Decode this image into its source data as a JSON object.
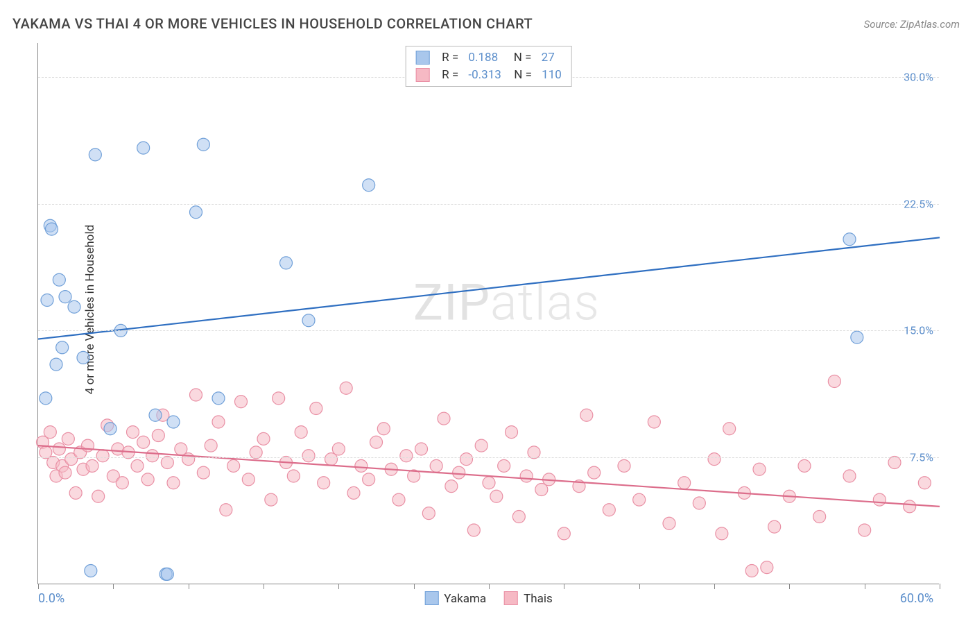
{
  "title": "YAKAMA VS THAI 4 OR MORE VEHICLES IN HOUSEHOLD CORRELATION CHART",
  "source_prefix": "Source: ",
  "source_name": "ZipAtlas.com",
  "ylabel": "4 or more Vehicles in Household",
  "watermark_a": "ZIP",
  "watermark_b": "atlas",
  "chart": {
    "type": "scatter",
    "background_color": "#ffffff",
    "grid_color": "#dddddd",
    "axis_color": "#888888",
    "xlim": [
      0,
      60
    ],
    "ylim": [
      0,
      32
    ],
    "ygrid": [
      7.5,
      15.0,
      22.5,
      30.0
    ],
    "ytick_labels": [
      "7.5%",
      "15.0%",
      "22.5%",
      "30.0%"
    ],
    "xorigin_label": "0.0%",
    "xmax_label": "60.0%",
    "xticks": [
      0,
      5,
      10,
      15,
      20,
      25,
      30,
      35,
      40,
      45,
      50,
      55,
      60
    ],
    "label_color": "#5b8ecb",
    "marker_radius": 9,
    "marker_opacity": 0.55,
    "line_width": 2.2,
    "series": [
      {
        "key": "yakama",
        "label": "Yakama",
        "color_fill": "#a9c7ec",
        "color_stroke": "#6f9fd8",
        "line_color": "#2f6fc1",
        "R": "0.188",
        "N": "27",
        "trend": {
          "x1": 0,
          "y1": 14.5,
          "x2": 60,
          "y2": 20.5
        },
        "points": [
          [
            0.5,
            11.0
          ],
          [
            0.6,
            16.8
          ],
          [
            0.8,
            21.2
          ],
          [
            0.9,
            21.0
          ],
          [
            1.2,
            13.0
          ],
          [
            1.4,
            18.0
          ],
          [
            1.6,
            14.0
          ],
          [
            1.8,
            17.0
          ],
          [
            2.4,
            16.4
          ],
          [
            3.0,
            13.4
          ],
          [
            3.8,
            25.4
          ],
          [
            4.8,
            9.2
          ],
          [
            5.5,
            15.0
          ],
          [
            7.0,
            25.8
          ],
          [
            7.8,
            10.0
          ],
          [
            8.5,
            0.6
          ],
          [
            8.6,
            0.6
          ],
          [
            9.0,
            9.6
          ],
          [
            10.5,
            22.0
          ],
          [
            11.0,
            26.0
          ],
          [
            12.0,
            11.0
          ],
          [
            16.5,
            19.0
          ],
          [
            18.0,
            15.6
          ],
          [
            22.0,
            23.6
          ],
          [
            54.0,
            20.4
          ],
          [
            54.5,
            14.6
          ],
          [
            3.5,
            0.8
          ]
        ]
      },
      {
        "key": "thais",
        "label": "Thais",
        "color_fill": "#f6b9c4",
        "color_stroke": "#e98fa4",
        "line_color": "#dc6d8b",
        "R": "-0.313",
        "N": "110",
        "trend": {
          "x1": 0,
          "y1": 8.2,
          "x2": 60,
          "y2": 4.6
        },
        "points": [
          [
            0.3,
            8.4
          ],
          [
            0.5,
            7.8
          ],
          [
            0.8,
            9.0
          ],
          [
            1.0,
            7.2
          ],
          [
            1.2,
            6.4
          ],
          [
            1.4,
            8.0
          ],
          [
            1.6,
            7.0
          ],
          [
            1.8,
            6.6
          ],
          [
            2.0,
            8.6
          ],
          [
            2.2,
            7.4
          ],
          [
            2.5,
            5.4
          ],
          [
            2.8,
            7.8
          ],
          [
            3.0,
            6.8
          ],
          [
            3.3,
            8.2
          ],
          [
            3.6,
            7.0
          ],
          [
            4.0,
            5.2
          ],
          [
            4.3,
            7.6
          ],
          [
            4.6,
            9.4
          ],
          [
            5.0,
            6.4
          ],
          [
            5.3,
            8.0
          ],
          [
            5.6,
            6.0
          ],
          [
            6.0,
            7.8
          ],
          [
            6.3,
            9.0
          ],
          [
            6.6,
            7.0
          ],
          [
            7.0,
            8.4
          ],
          [
            7.3,
            6.2
          ],
          [
            7.6,
            7.6
          ],
          [
            8.0,
            8.8
          ],
          [
            8.3,
            10.0
          ],
          [
            8.6,
            7.2
          ],
          [
            9.0,
            6.0
          ],
          [
            9.5,
            8.0
          ],
          [
            10.0,
            7.4
          ],
          [
            10.5,
            11.2
          ],
          [
            11.0,
            6.6
          ],
          [
            11.5,
            8.2
          ],
          [
            12.0,
            9.6
          ],
          [
            12.5,
            4.4
          ],
          [
            13.0,
            7.0
          ],
          [
            13.5,
            10.8
          ],
          [
            14.0,
            6.2
          ],
          [
            14.5,
            7.8
          ],
          [
            15.0,
            8.6
          ],
          [
            15.5,
            5.0
          ],
          [
            16.0,
            11.0
          ],
          [
            16.5,
            7.2
          ],
          [
            17.0,
            6.4
          ],
          [
            17.5,
            9.0
          ],
          [
            18.0,
            7.6
          ],
          [
            18.5,
            10.4
          ],
          [
            19.0,
            6.0
          ],
          [
            19.5,
            7.4
          ],
          [
            20.0,
            8.0
          ],
          [
            20.5,
            11.6
          ],
          [
            21.0,
            5.4
          ],
          [
            21.5,
            7.0
          ],
          [
            22.0,
            6.2
          ],
          [
            22.5,
            8.4
          ],
          [
            23.0,
            9.2
          ],
          [
            23.5,
            6.8
          ],
          [
            24.0,
            5.0
          ],
          [
            24.5,
            7.6
          ],
          [
            25.0,
            6.4
          ],
          [
            25.5,
            8.0
          ],
          [
            26.0,
            4.2
          ],
          [
            26.5,
            7.0
          ],
          [
            27.0,
            9.8
          ],
          [
            27.5,
            5.8
          ],
          [
            28.0,
            6.6
          ],
          [
            28.5,
            7.4
          ],
          [
            29.0,
            3.2
          ],
          [
            29.5,
            8.2
          ],
          [
            30.0,
            6.0
          ],
          [
            30.5,
            5.2
          ],
          [
            31.0,
            7.0
          ],
          [
            31.5,
            9.0
          ],
          [
            32.0,
            4.0
          ],
          [
            32.5,
            6.4
          ],
          [
            33.0,
            7.8
          ],
          [
            33.5,
            5.6
          ],
          [
            34.0,
            6.2
          ],
          [
            35.0,
            3.0
          ],
          [
            36.0,
            5.8
          ],
          [
            36.5,
            10.0
          ],
          [
            37.0,
            6.6
          ],
          [
            38.0,
            4.4
          ],
          [
            39.0,
            7.0
          ],
          [
            40.0,
            5.0
          ],
          [
            41.0,
            9.6
          ],
          [
            42.0,
            3.6
          ],
          [
            43.0,
            6.0
          ],
          [
            44.0,
            4.8
          ],
          [
            45.0,
            7.4
          ],
          [
            45.5,
            3.0
          ],
          [
            46.0,
            9.2
          ],
          [
            47.0,
            5.4
          ],
          [
            47.5,
            0.8
          ],
          [
            48.0,
            6.8
          ],
          [
            48.5,
            1.0
          ],
          [
            49.0,
            3.4
          ],
          [
            50.0,
            5.2
          ],
          [
            51.0,
            7.0
          ],
          [
            52.0,
            4.0
          ],
          [
            53.0,
            12.0
          ],
          [
            54.0,
            6.4
          ],
          [
            55.0,
            3.2
          ],
          [
            56.0,
            5.0
          ],
          [
            57.0,
            7.2
          ],
          [
            58.0,
            4.6
          ],
          [
            59.0,
            6.0
          ]
        ]
      }
    ]
  },
  "bottom_legend": [
    "Yakama",
    "Thais"
  ]
}
